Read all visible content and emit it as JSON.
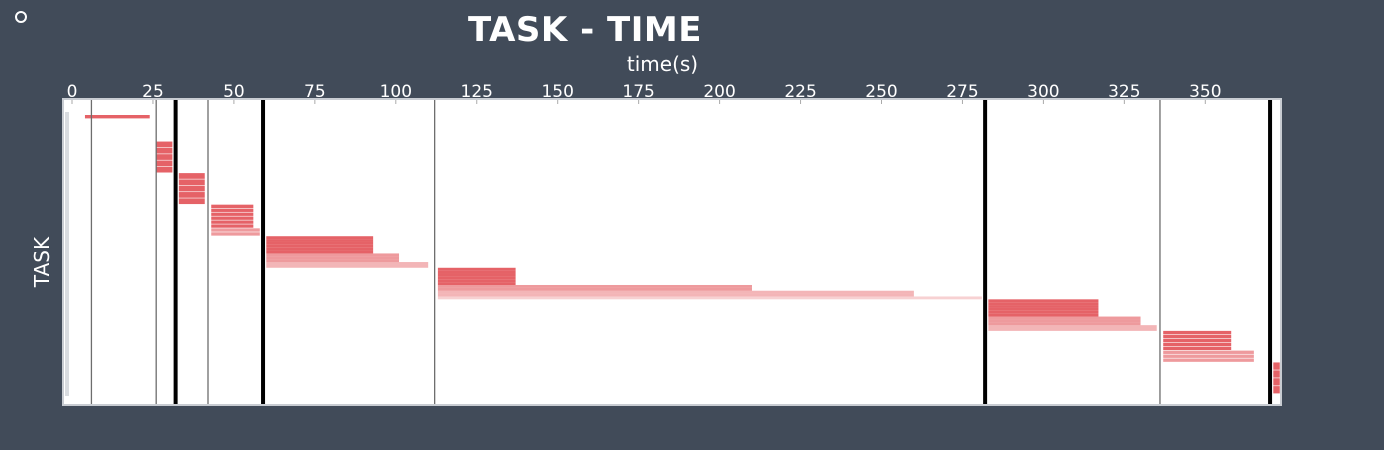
{
  "chart_data": {
    "type": "bar",
    "title": "TASK - TIME",
    "xlabel": "time(s)",
    "ylabel": "TASK",
    "xlim": [
      0,
      373
    ],
    "x_ticks": [
      0,
      25,
      50,
      75,
      100,
      125,
      150,
      175,
      200,
      225,
      250,
      275,
      300,
      325,
      350
    ],
    "bar_color": "#e0474c",
    "frame_color": "#c8ccd2",
    "marker_lines": [
      {
        "x": 6,
        "style": "thin"
      },
      {
        "x": 26,
        "style": "thin"
      },
      {
        "x": 32,
        "style": "thick"
      },
      {
        "x": 42,
        "style": "thin"
      },
      {
        "x": 59,
        "style": "thick"
      },
      {
        "x": 112,
        "style": "thin"
      },
      {
        "x": 282,
        "style": "thick"
      },
      {
        "x": 336,
        "style": "thin"
      },
      {
        "x": 370,
        "style": "thick"
      }
    ],
    "task_groups": [
      {
        "start": 4,
        "bars": [
          {
            "end": 24,
            "count": 1
          }
        ]
      },
      {
        "start": 26,
        "bars": [
          {
            "end": 31,
            "count": 5
          }
        ]
      },
      {
        "start": 33,
        "bars": [
          {
            "end": 41,
            "count": 5
          }
        ]
      },
      {
        "start": 43,
        "bars": [
          {
            "end": 56,
            "count": 6
          },
          {
            "end": 58,
            "count": 2
          }
        ]
      },
      {
        "start": 60,
        "bars": [
          {
            "end": 93,
            "count": 6
          },
          {
            "end": 101,
            "count": 3
          },
          {
            "end": 110,
            "count": 2
          }
        ]
      },
      {
        "start": 113,
        "bars": [
          {
            "end": 137,
            "count": 6
          },
          {
            "end": 210,
            "count": 2
          },
          {
            "end": 260,
            "count": 2
          },
          {
            "end": 281,
            "count": 1
          }
        ]
      },
      {
        "start": 283,
        "bars": [
          {
            "end": 317,
            "count": 6
          },
          {
            "end": 330,
            "count": 3
          },
          {
            "end": 335,
            "count": 2
          }
        ]
      },
      {
        "start": 337,
        "bars": [
          {
            "end": 358,
            "count": 5
          },
          {
            "end": 365,
            "count": 3
          }
        ]
      },
      {
        "start": 371,
        "bars": [
          {
            "end": 373,
            "count": 4
          }
        ]
      }
    ]
  }
}
